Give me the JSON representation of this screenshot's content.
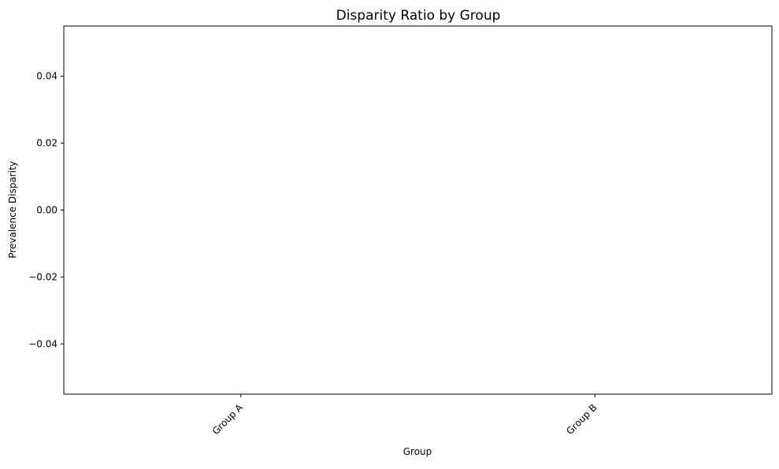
{
  "chart_data": {
    "type": "bar",
    "title": "Disparity Ratio by Group",
    "xlabel": "Group",
    "ylabel": "Prevalence Disparity",
    "categories": [
      "Group A",
      "Group B"
    ],
    "values": [
      0.0,
      0.0
    ],
    "ylim": [
      -0.055,
      0.055
    ],
    "yticks": [
      -0.04,
      -0.02,
      0.0,
      0.02,
      0.04
    ],
    "ytick_labels": [
      "−0.04",
      "−0.02",
      "0.00",
      "0.02",
      "0.04"
    ],
    "xtick_rotation": "45 degrees",
    "grid": false,
    "legend": "none",
    "colors": {
      "bar_edge": "#000000",
      "axes": "#000000",
      "background": "#ffffff"
    }
  }
}
